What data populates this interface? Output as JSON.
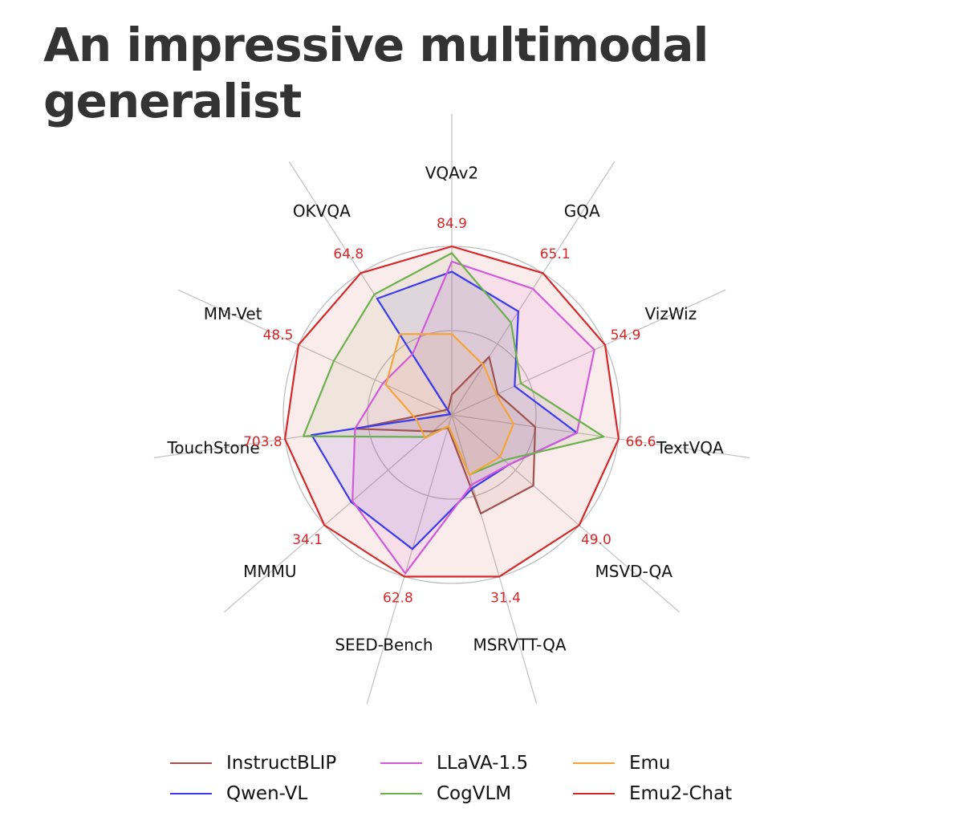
{
  "page": {
    "title": "An impressive multimodal generalist"
  },
  "chart_data": {
    "type": "radar",
    "title": "",
    "axes": [
      "VQAv2",
      "GQA",
      "VizWiz",
      "TextVQA",
      "MSVD-QA",
      "MSRVTT-QA",
      "SEED-Bench",
      "MMMU",
      "TouchStone",
      "MM-Vet",
      "OKVQA"
    ],
    "value_labels": [
      "84.9",
      "65.1",
      "54.9",
      "66.6",
      "49.0",
      "31.4",
      "62.8",
      "34.1",
      "703.8",
      "48.5",
      "64.8"
    ],
    "value_label_color": "#d62728",
    "normalization": "each axis scaled so the highest score reaches 1.0",
    "rings": [
      0.5,
      1.0
    ],
    "grid": true,
    "legend_position": "bottom",
    "series": [
      {
        "name": "InstructBLIP",
        "color": "#a0524f",
        "values": [
          0.12,
          0.41,
          0.3,
          0.5,
          0.64,
          0.61,
          0.08,
          0.15,
          0.58,
          0.06,
          0.04
        ]
      },
      {
        "name": "Qwen-VL",
        "color": "#3a3af0",
        "values": [
          0.85,
          0.73,
          0.41,
          0.75,
          0.45,
          0.45,
          0.83,
          0.79,
          0.84,
          0.01,
          0.82
        ]
      },
      {
        "name": "LLaVA-1.5",
        "color": "#d05ad8",
        "values": [
          0.91,
          0.89,
          0.93,
          0.75,
          0.45,
          0.43,
          0.98,
          0.78,
          0.58,
          0.45,
          0.43
        ]
      },
      {
        "name": "CogVLM",
        "color": "#6ab04c",
        "values": [
          0.96,
          0.65,
          0.45,
          0.91,
          0.41,
          0.37,
          0.07,
          0.2,
          0.89,
          0.77,
          0.85
        ]
      },
      {
        "name": "Emu",
        "color": "#f3a43b",
        "values": [
          0.48,
          0.35,
          0.29,
          0.37,
          0.38,
          0.37,
          0.07,
          0.21,
          0.21,
          0.43,
          0.57
        ]
      },
      {
        "name": "Emu2-Chat",
        "color": "#d62728",
        "values": [
          1.0,
          1.0,
          1.0,
          1.0,
          1.0,
          1.0,
          1.0,
          1.0,
          1.0,
          1.0,
          1.0
        ]
      }
    ]
  },
  "legend": {
    "items": [
      "InstructBLIP",
      "LLaVA-1.5",
      "Emu",
      "Qwen-VL",
      "CogVLM",
      "Emu2-Chat"
    ]
  }
}
